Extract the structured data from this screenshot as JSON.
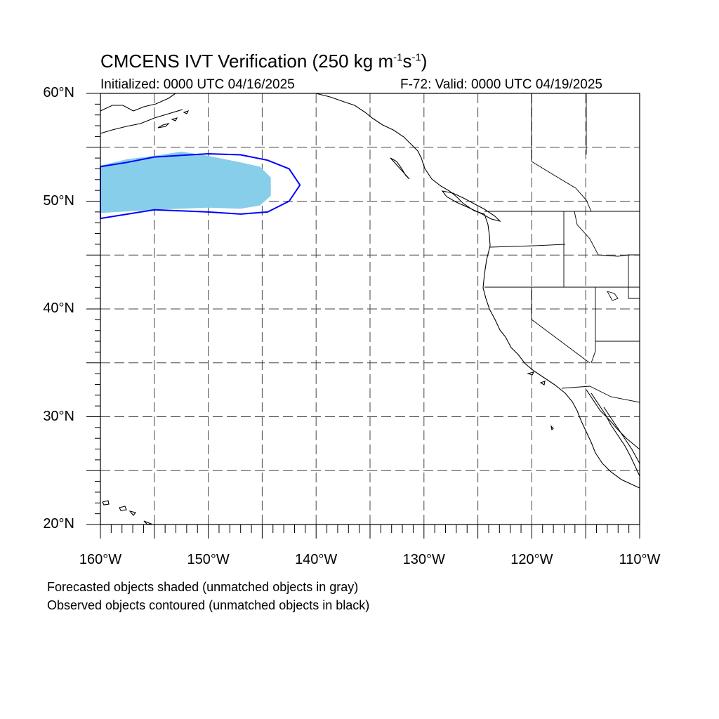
{
  "header": {
    "title_main": "CMCENS IVT Verification (250 kg m",
    "title_sup1": "-1",
    "title_mid": "s",
    "title_sup2": "-1",
    "title_end": ")",
    "initialized": "Initialized: 0000 UTC 04/16/2025",
    "valid": "F-72: Valid: 0000 UTC 04/19/2025"
  },
  "map": {
    "projection": "cylindrical-equidistant",
    "lon_range": [
      -160,
      -110
    ],
    "lat_range": [
      20,
      60
    ],
    "grid_interval_deg": 5,
    "grid_style": "dashed",
    "lat_labels": [
      "20°N",
      "30°N",
      "40°N",
      "50°N",
      "60°N"
    ],
    "lat_label_values": [
      20,
      30,
      40,
      50,
      60
    ],
    "lon_labels": [
      "160°W",
      "150°W",
      "140°W",
      "130°W",
      "120°W",
      "110°W"
    ],
    "lon_label_values": [
      -160,
      -150,
      -140,
      -130,
      -120,
      -110
    ],
    "forecast_color": "#87ceeb",
    "observed_color": "#0000ff",
    "forecast_object": [
      [
        -160,
        48.9
      ],
      [
        -155,
        49.2
      ],
      [
        -150,
        49.4
      ],
      [
        -147,
        49.3
      ],
      [
        -145.2,
        49.6
      ],
      [
        -144.2,
        50.5
      ],
      [
        -144.2,
        52.2
      ],
      [
        -145.2,
        53.2
      ],
      [
        -147,
        53.6
      ],
      [
        -150,
        54.2
      ],
      [
        -152.5,
        54.6
      ],
      [
        -155,
        54.2
      ],
      [
        -157.5,
        53.9
      ],
      [
        -160,
        53.3
      ]
    ],
    "observed_object": [
      [
        -160,
        48.4
      ],
      [
        -155,
        49.2
      ],
      [
        -150,
        49.0
      ],
      [
        -147,
        48.8
      ],
      [
        -144.5,
        49.0
      ],
      [
        -142.5,
        50.0
      ],
      [
        -141.5,
        51.5
      ],
      [
        -142.5,
        53.0
      ],
      [
        -144.5,
        53.8
      ],
      [
        -147,
        54.3
      ],
      [
        -150,
        54.4
      ],
      [
        -155,
        54.1
      ],
      [
        -157.5,
        53.6
      ],
      [
        -160,
        53.2
      ]
    ]
  },
  "legend": {
    "forecast_note": "Forecasted objects shaded (unmatched objects in gray)",
    "observed_note": "Observed objects contoured (unmatched objects in black)"
  }
}
